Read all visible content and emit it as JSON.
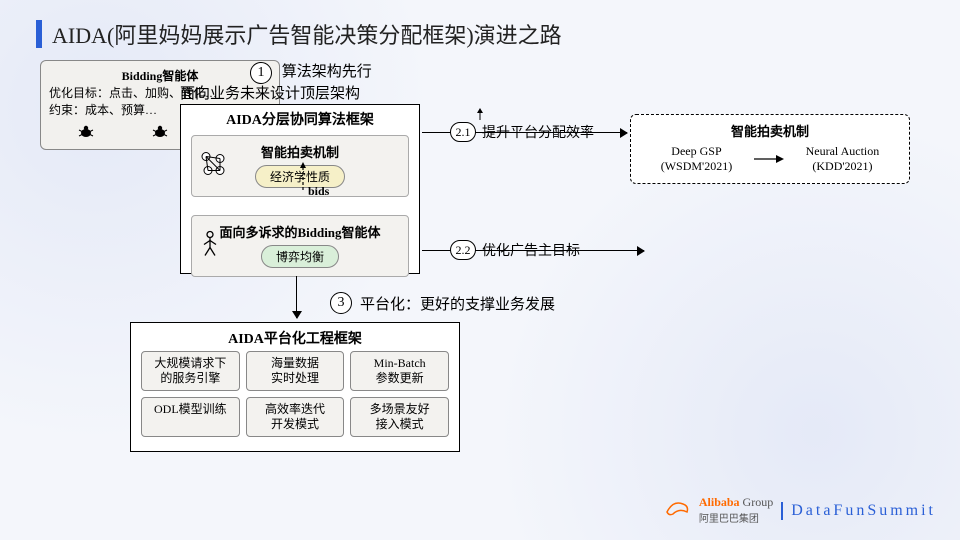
{
  "title": "AIDA(阿里妈妈展示广告智能决策分配框架)演进之路",
  "step1": {
    "num": "1",
    "label": "算法架构先行",
    "sub": "面向业务未来设计顶层架构"
  },
  "aidaTop": {
    "header": "AIDA分层协同算法框架",
    "box1_title": "智能拍卖机制",
    "box1_pill": "经济学性质",
    "bids": "bids",
    "box2_title": "面向多诉求的Bidding智能体",
    "box2_pill": "博弈均衡"
  },
  "branch21": {
    "num": "2.1",
    "label": "提升平台分配效率"
  },
  "branch22": {
    "num": "2.2",
    "label": "优化广告主目标"
  },
  "auction": {
    "header": "智能拍卖机制",
    "left_top": "Deep GSP",
    "left_bot": "(WSDM'2021)",
    "right_top": "Neural Auction",
    "right_bot": "(KDD'2021)"
  },
  "bidding": {
    "header": "Bidding智能体",
    "line1": "优化目标：点击、加购、转化…",
    "line2": "约束：成本、预算…"
  },
  "step3": {
    "num": "3",
    "label": "平台化：更好的支撑业务发展"
  },
  "aidaBot": {
    "header": "AIDA平台化工程框架",
    "cells": [
      "大规模请求下\n的服务引擎",
      "海量数据\n实时处理",
      "Min-Batch\n参数更新",
      "ODL模型训练",
      "高效率迭代\n开发模式",
      "多场景友好\n接入模式"
    ]
  },
  "footer": {
    "brand_en": "Alibaba",
    "brand_grp": "Group",
    "brand_cn": "阿里巴巴集团",
    "summit": "DataFunSummit"
  },
  "colors": {
    "accent": "#2a5fd6",
    "pill_y": "#f6f0c8",
    "pill_g": "#d9efd9",
    "box_bg": "#f3f2ef"
  }
}
